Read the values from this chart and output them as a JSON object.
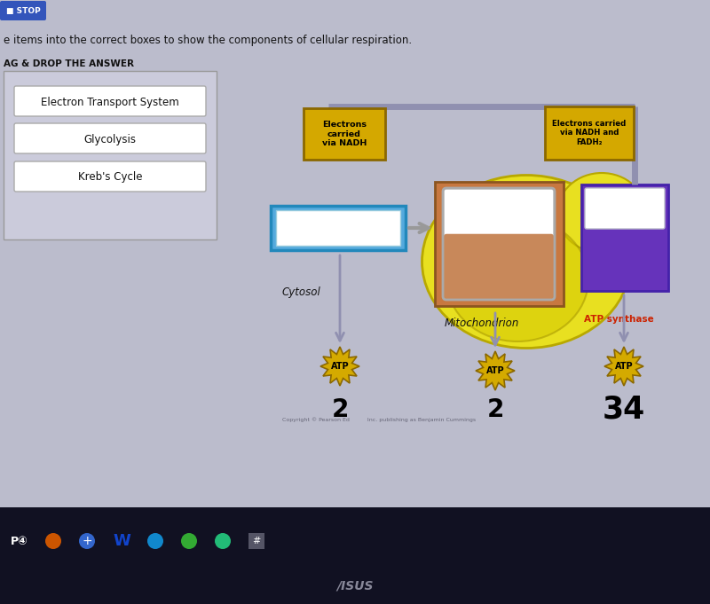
{
  "bg_color": "#bbbccc",
  "title_text": "e items into the correct boxes to show the components of cellular respiration.",
  "drag_label": "AG & DROP THE ANSWER",
  "drag_items": [
    "Electron Transport System",
    "Glycolysis",
    "Kreb's Cycle"
  ],
  "cytosol_label": "Cytosol",
  "mito_label": "Mitochondrion",
  "atp_synthase_label": "ATP synthase",
  "electrons_nadh_text": "Electrons\ncarried\nvia NADH",
  "electrons_nadh_fadh_text": "Electrons carried\nvia NADH and\nFADH₂",
  "atp_numbers": [
    "2",
    "2",
    "34"
  ],
  "yellow_color": "#e8e020",
  "yellow_edge": "#b8a800",
  "blue_box_color": "#55aadd",
  "blue_box_edge": "#2288bb",
  "purple_box_color": "#6633bb",
  "orange_rect_color": "#c87840",
  "orange_rect_edge": "#8b5520",
  "gold_label_bg": "#d4a800",
  "gold_label_edge": "#8b6800",
  "atp_star_color": "#d4aa00",
  "atp_star_edge": "#8b6800",
  "pipe_color": "#9090b0",
  "arrow_color": "#9090b0",
  "red_text_color": "#cc2200",
  "taskbar_color": "#111122",
  "stop_color": "#3355bb",
  "white": "#ffffff",
  "light_gray": "#ddddee",
  "beaker_fill": "#c8885a",
  "copyright_text": "Copyright © Pearson Ed          Inc. publishing as Benjamin Cummings"
}
